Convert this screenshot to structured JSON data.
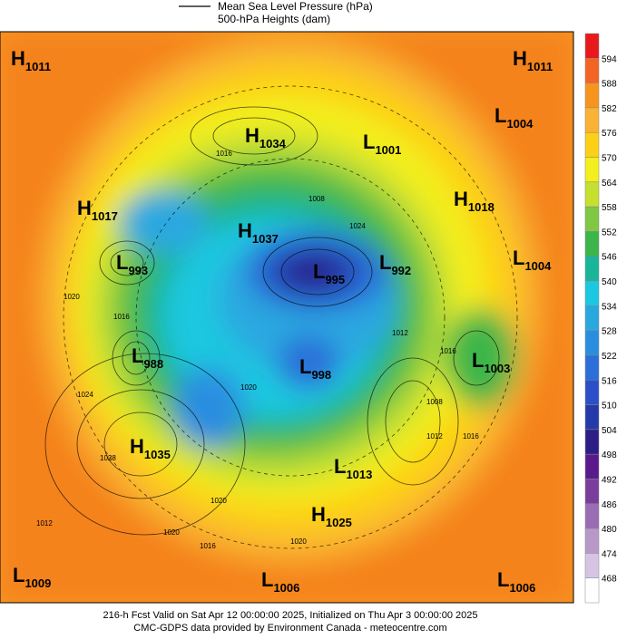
{
  "legend": {
    "line1": "Mean Sea Level Pressure (hPa)",
    "line2": "500-hPa Heights (dam)"
  },
  "colorbar": {
    "ticks": [
      594,
      588,
      582,
      576,
      570,
      564,
      558,
      552,
      546,
      540,
      534,
      528,
      522,
      516,
      510,
      504,
      498,
      492,
      486,
      480,
      474,
      468
    ],
    "colors": [
      "#e8191c",
      "#f26522",
      "#f7941d",
      "#f9b233",
      "#fdd017",
      "#f3ee1e",
      "#c6e030",
      "#7ec843",
      "#3cb64a",
      "#19b59a",
      "#1cc7e0",
      "#29a8e0",
      "#2a8ee0",
      "#2c6fd9",
      "#2a4fc9",
      "#233aa8",
      "#2c1e86",
      "#5a1a8c",
      "#7a3d9c",
      "#9a6cb3",
      "#b898c8",
      "#d7c4e2",
      "#ffffff"
    ]
  },
  "centers": [
    {
      "letter": "H",
      "value": 1011
    },
    {
      "letter": "H",
      "value": 1011
    },
    {
      "letter": "L",
      "value": 1004
    },
    {
      "letter": "H",
      "value": 1034
    },
    {
      "letter": "L",
      "value": 1001
    },
    {
      "letter": "H",
      "value": 1018
    },
    {
      "letter": "H",
      "value": 1017
    },
    {
      "letter": "H",
      "value": 1037
    },
    {
      "letter": "L",
      "value": 993
    },
    {
      "letter": "L",
      "value": 995
    },
    {
      "letter": "L",
      "value": 992
    },
    {
      "letter": "L",
      "value": 1004
    },
    {
      "letter": "L",
      "value": 988
    },
    {
      "letter": "L",
      "value": 998
    },
    {
      "letter": "L",
      "value": 1003
    },
    {
      "letter": "H",
      "value": 1035
    },
    {
      "letter": "L",
      "value": 1013
    },
    {
      "letter": "H",
      "value": 1025
    },
    {
      "letter": "L",
      "value": 1009
    },
    {
      "letter": "L",
      "value": 1006
    },
    {
      "letter": "L",
      "value": 1006
    }
  ],
  "contour_labels": [
    1016,
    1020,
    1016,
    1024,
    1028,
    1012,
    1020,
    1016,
    1020,
    1020,
    1012,
    1016,
    1008,
    1012,
    1016,
    1024,
    1008,
    1020
  ],
  "footer": {
    "line1": "216-h Fcst Valid on Sat Apr 12 00:00:00 2025, Initialized on Thu Apr  3 00:00:00 2025",
    "line2": "CMC-GDPS data provided by Environment Canada - meteocentre.com"
  }
}
